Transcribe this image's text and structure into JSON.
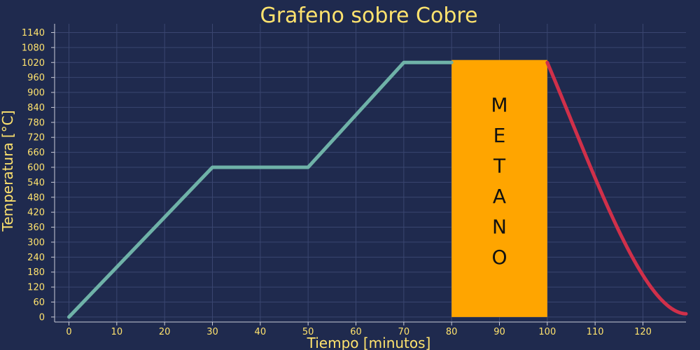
{
  "chart_data": {
    "type": "line",
    "title": "Grafeno sobre Cobre",
    "xlabel": "Tiempo [minutos]",
    "ylabel": "Temperatura [°C]",
    "xlim": [
      -3,
      129
    ],
    "ylim": [
      -20,
      1175
    ],
    "x_ticks": [
      0,
      10,
      20,
      30,
      40,
      50,
      60,
      70,
      80,
      90,
      100,
      110,
      120
    ],
    "y_ticks": [
      0,
      60,
      120,
      180,
      240,
      300,
      360,
      420,
      480,
      540,
      600,
      660,
      720,
      780,
      840,
      900,
      960,
      1020,
      1080,
      1140
    ],
    "grid": true,
    "series": [
      {
        "color": "#6fb2a8",
        "points": [
          [
            0,
            0
          ],
          [
            30,
            600
          ],
          [
            50,
            600
          ],
          [
            70,
            1020
          ],
          [
            80,
            1020
          ]
        ]
      },
      {
        "color": "#d0304a",
        "curve": "cooling",
        "x_range": [
          100,
          129
        ],
        "y_start": 1020,
        "y_end": 13
      }
    ],
    "annotations": [
      {
        "type": "band",
        "x_range": [
          80,
          100
        ],
        "y_range": [
          0,
          1030
        ],
        "color": "#ffa500",
        "label_letters": [
          "M",
          "E",
          "T",
          "A",
          "N",
          "O"
        ]
      }
    ]
  }
}
